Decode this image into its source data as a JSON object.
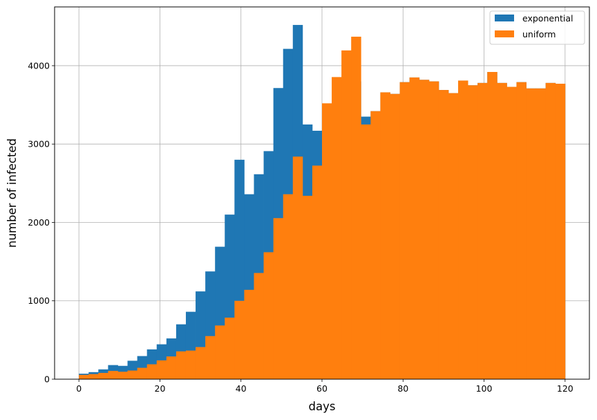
{
  "chart_data": {
    "type": "bar",
    "subtype": "histogram-overlay",
    "title": "",
    "xlabel": "days",
    "ylabel": "number of infected",
    "xlim": [
      -6,
      126
    ],
    "ylim": [
      0,
      4750
    ],
    "bin_width": 2.4,
    "bin_start": 0,
    "xticks": [
      0,
      20,
      40,
      60,
      80,
      100,
      120
    ],
    "yticks": [
      0,
      1000,
      2000,
      3000,
      4000
    ],
    "grid": true,
    "legend_position": "top-right",
    "series": [
      {
        "name": "exponential",
        "color": "#1f77b4",
        "values": [
          70,
          90,
          125,
          180,
          170,
          235,
          295,
          380,
          445,
          520,
          700,
          860,
          1120,
          1375,
          1690,
          2100,
          2800,
          2360,
          2615,
          2910,
          3715,
          4215,
          4520,
          3250,
          3170,
          3000,
          3300,
          3700,
          3800,
          3350,
          3420,
          3660,
          3640,
          3790,
          3850,
          3820,
          3800,
          3690,
          3650,
          3810,
          3750,
          3780,
          3920,
          3780,
          3730,
          3790,
          3710,
          3710,
          3780,
          3770
        ]
      },
      {
        "name": "uniform",
        "color": "#ff7f0e",
        "values": [
          55,
          65,
          80,
          105,
          95,
          110,
          145,
          190,
          240,
          290,
          355,
          365,
          410,
          550,
          685,
          785,
          1000,
          1140,
          1355,
          1620,
          2055,
          2360,
          2840,
          2340,
          2725,
          3520,
          3855,
          4195,
          4370,
          3250,
          3420,
          3660,
          3640,
          3790,
          3850,
          3820,
          3800,
          3690,
          3650,
          3810,
          3750,
          3780,
          3920,
          3780,
          3730,
          3790,
          3710,
          3710,
          3780,
          3770
        ]
      }
    ]
  }
}
